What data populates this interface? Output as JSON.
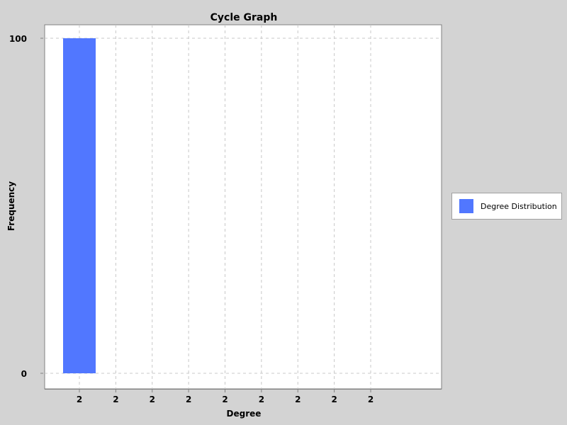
{
  "chart_data": {
    "type": "bar",
    "title": "Cycle Graph",
    "xlabel": "Degree",
    "ylabel": "Frequency",
    "categories": [
      "2",
      "2",
      "2",
      "2",
      "2",
      "2",
      "2",
      "2",
      "2"
    ],
    "series": [
      {
        "name": "Degree Distribution",
        "values": [
          100,
          0,
          0,
          0,
          0,
          0,
          0,
          0,
          0
        ],
        "color": "#5177ff"
      }
    ],
    "ylim": [
      0,
      100
    ],
    "yticks": [
      "0",
      "100"
    ],
    "grid": true,
    "legend_position": "right"
  },
  "legend": {
    "label": "Degree Distribution",
    "color": "#5177ff"
  }
}
